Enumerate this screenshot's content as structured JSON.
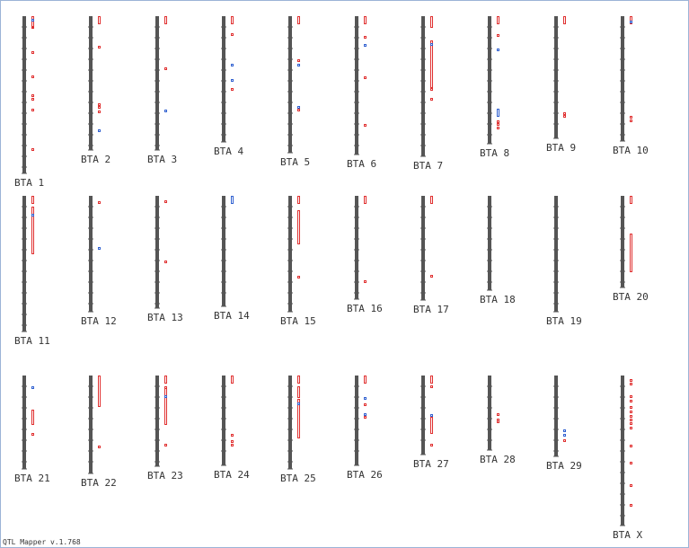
{
  "chromosomes": [
    {
      "label": "BTA 1"
    },
    {
      "label": "BTA 2"
    },
    {
      "label": "BTA 3"
    },
    {
      "label": "BTA 4"
    },
    {
      "label": "BTA 5"
    },
    {
      "label": "BTA 6"
    },
    {
      "label": "BTA 7"
    },
    {
      "label": "BTA 8"
    },
    {
      "label": "BTA 9"
    },
    {
      "label": "BTA 10"
    },
    {
      "label": "BTA 11"
    },
    {
      "label": "BTA 12"
    },
    {
      "label": "BTA 13"
    },
    {
      "label": "BTA 14"
    },
    {
      "label": "BTA 15"
    },
    {
      "label": "BTA 16"
    },
    {
      "label": "BTA 17"
    },
    {
      "label": "BTA 18"
    },
    {
      "label": "BTA 19"
    },
    {
      "label": "BTA 20"
    },
    {
      "label": "BTA 21"
    },
    {
      "label": "BTA 22"
    },
    {
      "label": "BTA 23"
    },
    {
      "label": "BTA 24"
    },
    {
      "label": "BTA 25"
    },
    {
      "label": "BTA 26"
    },
    {
      "label": "BTA 27"
    },
    {
      "label": "BTA 28"
    },
    {
      "label": "BTA 29"
    },
    {
      "label": "BTA X"
    }
  ],
  "footer": "QTL Mapper v.1.768"
}
